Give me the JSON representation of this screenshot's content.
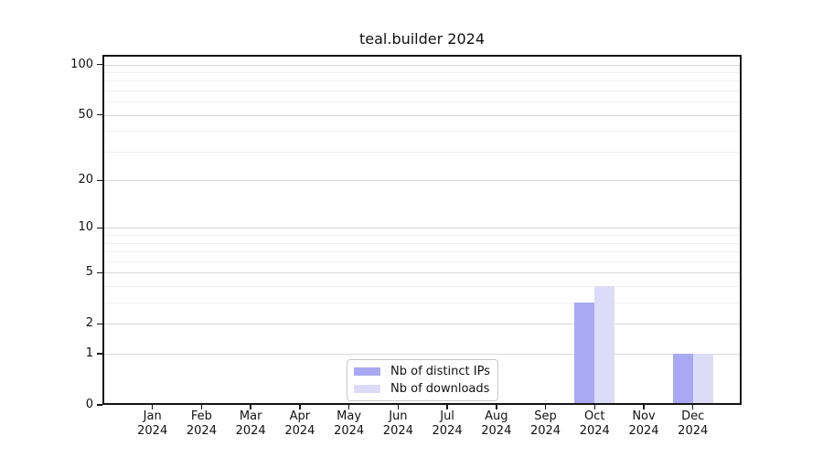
{
  "title": "teal.builder 2024",
  "colors": {
    "spine": "#141414",
    "grid_major": "#d8d8d8",
    "grid_minor": "#f0f0f0",
    "text": "#111111",
    "legend_border": "#c9c9c9"
  },
  "chart_data": {
    "type": "bar",
    "title": "teal.builder 2024",
    "categories": [
      "Jan",
      "Feb",
      "Mar",
      "Apr",
      "May",
      "Jun",
      "Jul",
      "Aug",
      "Sep",
      "Oct",
      "Nov",
      "Dec"
    ],
    "year": "2024",
    "x_tick_labels": [
      "Jan 2024",
      "Feb 2024",
      "Mar 2024",
      "Apr 2024",
      "May 2024",
      "Jun 2024",
      "Jul 2024",
      "Aug 2024",
      "Sep 2024",
      "Oct 2024",
      "Nov 2024",
      "Dec 2024"
    ],
    "series": [
      {
        "name": "Nb of distinct IPs",
        "color": "#a9a9f3",
        "values": [
          0,
          0,
          0,
          0,
          0,
          0,
          0,
          0,
          0,
          3,
          0,
          1
        ]
      },
      {
        "name": "Nb of downloads",
        "color": "#dcdcf9",
        "values": [
          0,
          0,
          0,
          0,
          0,
          0,
          0,
          0,
          0,
          4,
          0,
          1
        ]
      }
    ],
    "yscale": "log1p",
    "ylim": [
      0,
      114
    ],
    "yticks_major": [
      0,
      1,
      2,
      5,
      10,
      20,
      50,
      100
    ],
    "yticks_minor": [
      3,
      4,
      6,
      7,
      8,
      9,
      30,
      40,
      60,
      70,
      80,
      90
    ],
    "grid": "on",
    "legend": {
      "position": "lower center",
      "entries": [
        "Nb of distinct IPs",
        "Nb of downloads"
      ]
    }
  }
}
